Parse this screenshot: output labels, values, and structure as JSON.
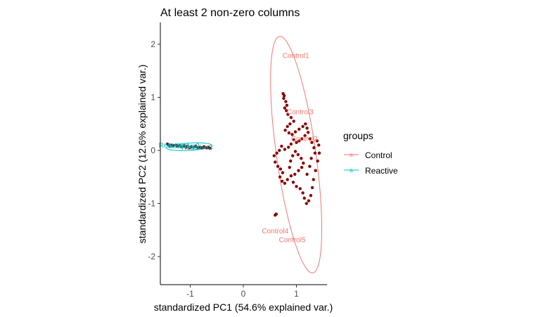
{
  "chart_data": {
    "type": "scatter",
    "title": "At least 2 non-zero columns",
    "xlabel": "standardized PC1 (54.6% explained var.)",
    "ylabel": "standardized PC2 (12.6% explained var.)",
    "xlim": [
      -1.55,
      1.55
    ],
    "ylim": [
      -2.55,
      2.4
    ],
    "x_ticks": [
      -1,
      0,
      1
    ],
    "y_ticks": [
      -2,
      -1,
      0,
      1,
      2
    ],
    "legend": {
      "title": "groups",
      "position": "right",
      "entries": [
        {
          "name": "Control",
          "color": "#F8766D",
          "marker": "a"
        },
        {
          "name": "Reactive",
          "color": "#00BFC4",
          "marker": "a"
        }
      ]
    },
    "point_color": "#8B0000",
    "groups": [
      {
        "name": "Control",
        "color": "#F8766D",
        "ellipse": {
          "cx": 0.995,
          "cy": -0.08,
          "rx": 0.37,
          "ry": 2.25,
          "angle_deg": -8
        },
        "samples": [
          {
            "label": "Control1",
            "x": 0.99,
            "y": 1.78
          },
          {
            "label": "Control3",
            "x": 1.07,
            "y": 0.72
          },
          {
            "label": "Control2",
            "x": 1.15,
            "y": 0.22
          },
          {
            "label": "Control4",
            "x": 0.6,
            "y": -1.52
          },
          {
            "label": "Control5",
            "x": 0.92,
            "y": -1.69
          }
        ]
      },
      {
        "name": "Reactive",
        "color": "#00BFC4",
        "ellipse": {
          "cx": -1.02,
          "cy": 0.07,
          "rx": 0.43,
          "ry": 0.07,
          "angle_deg": -3
        },
        "samples": [
          {
            "label": "Reactive1",
            "x": -1.3,
            "y": 0.09
          },
          {
            "label": "Reactive2",
            "x": -1.12,
            "y": 0.08
          },
          {
            "label": "Reactive3",
            "x": -0.87,
            "y": 0.05
          }
        ]
      }
    ],
    "points": [
      [
        -1.43,
        0.12
      ],
      [
        -1.4,
        0.1
      ],
      [
        -1.38,
        0.08
      ],
      [
        -1.35,
        0.1
      ],
      [
        -1.32,
        0.09
      ],
      [
        -1.27,
        0.1
      ],
      [
        -1.24,
        0.08
      ],
      [
        -1.2,
        0.09
      ],
      [
        -1.16,
        0.07
      ],
      [
        -1.12,
        0.09
      ],
      [
        -1.08,
        0.06
      ],
      [
        -1.05,
        0.08
      ],
      [
        -1.01,
        0.05
      ],
      [
        -0.98,
        0.07
      ],
      [
        -0.94,
        0.06
      ],
      [
        -0.9,
        0.08
      ],
      [
        -0.86,
        0.05
      ],
      [
        -0.82,
        0.06
      ],
      [
        -0.78,
        0.05
      ],
      [
        -0.74,
        0.07
      ],
      [
        -0.7,
        0.05
      ],
      [
        -0.66,
        0.06
      ],
      [
        -0.63,
        0.04
      ],
      [
        0.75,
        1.07
      ],
      [
        0.77,
        1.03
      ],
      [
        0.76,
        0.98
      ],
      [
        0.8,
        0.92
      ],
      [
        0.82,
        0.85
      ],
      [
        0.78,
        0.8
      ],
      [
        0.81,
        0.75
      ],
      [
        0.84,
        0.68
      ],
      [
        0.9,
        0.62
      ],
      [
        0.95,
        0.55
      ],
      [
        0.88,
        0.5
      ],
      [
        0.83,
        0.45
      ],
      [
        0.79,
        0.38
      ],
      [
        0.86,
        0.33
      ],
      [
        0.92,
        0.3
      ],
      [
        0.98,
        0.35
      ],
      [
        1.05,
        0.4
      ],
      [
        1.12,
        0.45
      ],
      [
        1.17,
        0.5
      ],
      [
        1.2,
        0.42
      ],
      [
        1.22,
        0.34
      ],
      [
        1.16,
        0.28
      ],
      [
        1.1,
        0.22
      ],
      [
        1.05,
        0.18
      ],
      [
        1.0,
        0.15
      ],
      [
        0.95,
        0.2
      ],
      [
        0.9,
        0.12
      ],
      [
        0.85,
        0.06
      ],
      [
        0.78,
        0.02
      ],
      [
        0.72,
        0.08
      ],
      [
        0.68,
        0.0
      ],
      [
        0.63,
        -0.05
      ],
      [
        0.58,
        -0.1
      ],
      [
        0.6,
        -0.22
      ],
      [
        0.65,
        -0.3
      ],
      [
        0.7,
        -0.35
      ],
      [
        0.74,
        -0.42
      ],
      [
        0.69,
        -0.5
      ],
      [
        0.73,
        -0.58
      ],
      [
        0.78,
        -0.62
      ],
      [
        0.83,
        -0.55
      ],
      [
        0.9,
        -0.48
      ],
      [
        0.97,
        -0.45
      ],
      [
        1.04,
        -0.38
      ],
      [
        1.1,
        -0.32
      ],
      [
        1.13,
        -0.24
      ],
      [
        1.09,
        -0.15
      ],
      [
        1.03,
        -0.08
      ],
      [
        0.98,
        -0.02
      ],
      [
        0.93,
        -0.1
      ],
      [
        0.89,
        -0.2
      ],
      [
        0.87,
        -0.32
      ],
      [
        0.94,
        -0.6
      ],
      [
        1.0,
        -0.68
      ],
      [
        1.07,
        -0.72
      ],
      [
        1.12,
        -0.8
      ],
      [
        1.15,
        -0.9
      ],
      [
        1.19,
        -1.0
      ],
      [
        1.23,
        -0.95
      ],
      [
        1.27,
        -0.85
      ],
      [
        1.3,
        -0.7
      ],
      [
        1.32,
        -0.55
      ],
      [
        1.36,
        -0.38
      ],
      [
        1.4,
        -0.2
      ],
      [
        1.43,
        -0.05
      ],
      [
        1.42,
        0.1
      ],
      [
        1.39,
        0.18
      ],
      [
        1.35,
        -0.05
      ],
      [
        1.33,
        0.05
      ],
      [
        1.29,
        0.15
      ],
      [
        1.25,
        0.22
      ],
      [
        1.28,
        -0.15
      ],
      [
        1.25,
        -0.3
      ],
      [
        1.2,
        -0.45
      ],
      [
        0.62,
        -1.2
      ],
      [
        0.6,
        -1.22
      ]
    ]
  }
}
